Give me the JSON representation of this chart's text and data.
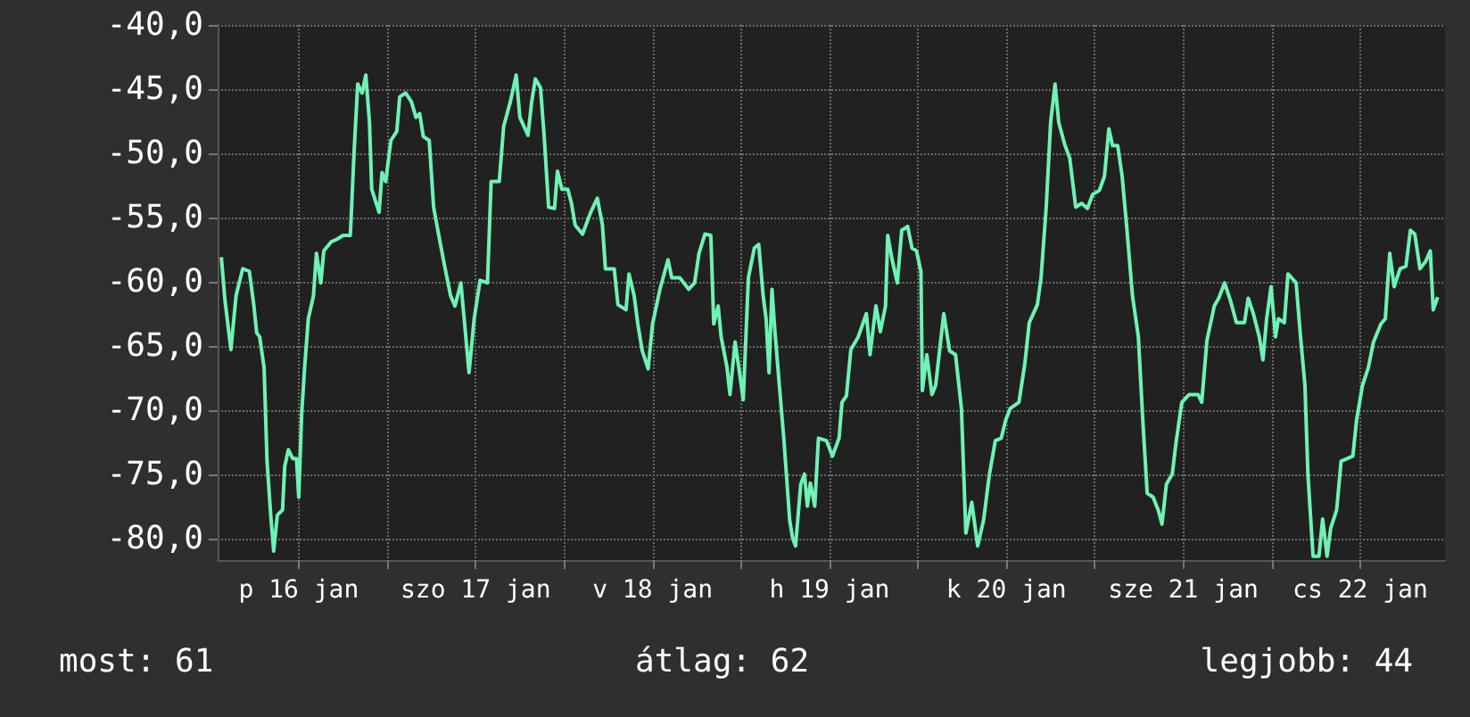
{
  "chart_data": {
    "type": "line",
    "annotations": [
      "most: 61",
      "átlag: 62",
      "legjobb: 44"
    ],
    "xlim": [
      "--01-16T01:00",
      "--01-22T23:30"
    ],
    "xticks": [
      {
        "value": "--01-16T12:00",
        "label": "p 16 jan"
      },
      {
        "value": "--01-17T00:00",
        "label": null
      },
      {
        "value": "--01-17T12:00",
        "label": "szo 17 jan"
      },
      {
        "value": "--01-18T00:00",
        "label": null
      },
      {
        "value": "--01-18T12:00",
        "label": "v 18 jan"
      },
      {
        "value": "--01-19T00:00",
        "label": null
      },
      {
        "value": "--01-19T12:00",
        "label": "h 19 jan"
      },
      {
        "value": "--01-20T00:00",
        "label": null
      },
      {
        "value": "--01-20T12:00",
        "label": "k 20 jan"
      },
      {
        "value": "--01-21T00:00",
        "label": null
      },
      {
        "value": "--01-21T12:00",
        "label": "sze 21 jan"
      },
      {
        "value": "--01-22T00:00",
        "label": null
      },
      {
        "value": "--01-22T12:00",
        "label": "cs 22 jan"
      }
    ],
    "ylim": [
      -81.7,
      -40
    ],
    "yticks": [
      {
        "value": -80,
        "label": "-80,0"
      },
      {
        "value": -75,
        "label": "-75,0"
      },
      {
        "value": -70,
        "label": "-70,0"
      },
      {
        "value": -65,
        "label": "-65,0"
      },
      {
        "value": -60,
        "label": "-60,0"
      },
      {
        "value": -55,
        "label": "-55,0"
      },
      {
        "value": -50,
        "label": "-50,0"
      },
      {
        "value": -45,
        "label": "-45,0"
      },
      {
        "value": -40,
        "label": "-40,0"
      }
    ],
    "grid": true,
    "series": [
      {
        "color": "#6ff2b4",
        "x": [
          "--01-16T01:30",
          "--01-16T02:00",
          "--01-16T02:48",
          "--01-16T03:30",
          "--01-16T04:24",
          "--01-16T05:18",
          "--01-16T05:54",
          "--01-16T06:18",
          "--01-16T06:42",
          "--01-16T07:18",
          "--01-16T07:42",
          "--01-16T08:12",
          "--01-16T08:36",
          "--01-16T09:06",
          "--01-16T09:48",
          "--01-16T10:06",
          "--01-16T10:36",
          "--01-16T11:12",
          "--01-16T11:42",
          "--01-16T12:00",
          "--01-16T12:24",
          "--01-16T12:48",
          "--01-16T13:18",
          "--01-16T14:00",
          "--01-16T14:24",
          "--01-16T15:00",
          "--01-16T15:24",
          "--01-16T16:24",
          "--01-16T17:12",
          "--01-16T18:00",
          "--01-16T19:00",
          "--01-16T19:30",
          "--01-16T20:00",
          "--01-16T20:36",
          "--01-16T21:06",
          "--01-16T21:36",
          "--01-16T21:54",
          "--01-16T22:54",
          "--01-16T23:18",
          "--01-16T23:48",
          "--01-17T00:30",
          "--01-17T01:18",
          "--01-17T01:42",
          "--01-17T02:30",
          "--01-17T03:18",
          "--01-17T03:54",
          "--01-17T04:24",
          "--01-17T04:54",
          "--01-17T05:42",
          "--01-17T06:18",
          "--01-17T07:00",
          "--01-17T07:48",
          "--01-17T08:36",
          "--01-17T09:12",
          "--01-17T10:00",
          "--01-17T10:36",
          "--01-17T11:06",
          "--01-17T11:48",
          "--01-17T12:36",
          "--01-17T13:36",
          "--01-17T14:06",
          "--01-17T15:12",
          "--01-17T15:48",
          "--01-17T16:42",
          "--01-17T17:30",
          "--01-17T18:00",
          "--01-17T19:06",
          "--01-17T19:36",
          "--01-17T20:06",
          "--01-17T20:48",
          "--01-17T21:18",
          "--01-17T21:54",
          "--01-17T22:42",
          "--01-17T23:06",
          "--01-17T23:42",
          "--01-18T00:30",
          "--01-18T01:00",
          "--01-18T01:30",
          "--01-18T02:30",
          "--01-18T03:36",
          "--01-18T04:30",
          "--01-18T05:12",
          "--01-18T05:36",
          "--01-18T06:48",
          "--01-18T07:18",
          "--01-18T08:24",
          "--01-18T08:48",
          "--01-18T09:30",
          "--01-18T10:00",
          "--01-18T10:36",
          "--01-18T11:24",
          "--01-18T12:00",
          "--01-18T13:00",
          "--01-18T14:06",
          "--01-18T14:36",
          "--01-18T15:42",
          "--01-18T16:54",
          "--01-18T17:42",
          "--01-18T18:18",
          "--01-18T19:06",
          "--01-18T19:54",
          "--01-18T20:18",
          "--01-18T20:54",
          "--01-18T21:18",
          "--01-18T22:06",
          "--01-18T22:30",
          "--01-18T23:12",
          "--01-18T23:48",
          "--01-19T00:18",
          "--01-19T01:00",
          "--01-19T01:48",
          "--01-19T02:24",
          "--01-19T03:00",
          "--01-19T03:24",
          "--01-19T03:48",
          "--01-19T04:12",
          "--01-19T04:36",
          "--01-19T05:12",
          "--01-19T05:48",
          "--01-19T06:36",
          "--01-19T07:00",
          "--01-19T07:24",
          "--01-19T08:06",
          "--01-19T08:36",
          "--01-19T09:00",
          "--01-19T09:24",
          "--01-19T10:00",
          "--01-19T10:30",
          "--01-19T11:36",
          "--01-19T12:24",
          "--01-19T13:18",
          "--01-19T13:42",
          "--01-19T14:18",
          "--01-19T14:54",
          "--01-19T15:54",
          "--01-19T17:00",
          "--01-19T17:30",
          "--01-19T18:18",
          "--01-19T18:54",
          "--01-19T19:36",
          "--01-19T19:54",
          "--01-19T20:30",
          "--01-19T21:12",
          "--01-19T21:48",
          "--01-19T22:36",
          "--01-19T23:12",
          "--01-19T23:48",
          "--01-20T00:24",
          "--01-20T00:36",
          "--01-20T01:12",
          "--01-20T01:54",
          "--01-20T02:24",
          "--01-20T03:30",
          "--01-20T04:18",
          "--01-20T05:06",
          "--01-20T05:54",
          "--01-20T06:30",
          "--01-20T07:18",
          "--01-20T08:06",
          "--01-20T08:54",
          "--01-20T09:42",
          "--01-20T10:30",
          "--01-20T11:18",
          "--01-20T11:54",
          "--01-20T12:30",
          "--01-20T13:42",
          "--01-20T14:30",
          "--01-20T15:06",
          "--01-20T16:12",
          "--01-20T16:42",
          "--01-20T17:24",
          "--01-20T18:00",
          "--01-20T18:36",
          "--01-20T19:06",
          "--01-20T19:54",
          "--01-20T20:36",
          "--01-20T21:24",
          "--01-20T22:12",
          "--01-20T23:00",
          "--01-20T23:42",
          "--01-21T00:36",
          "--01-21T01:18",
          "--01-21T01:54",
          "--01-21T02:24",
          "--01-21T03:06",
          "--01-21T03:42",
          "--01-21T04:18",
          "--01-21T05:06",
          "--01-21T05:54",
          "--01-21T06:30",
          "--01-21T07:06",
          "--01-21T07:54",
          "--01-21T08:36",
          "--01-21T09:06",
          "--01-21T09:42",
          "--01-21T10:30",
          "--01-21T11:00",
          "--01-21T11:48",
          "--01-21T12:48",
          "--01-21T14:00",
          "--01-21T14:30",
          "--01-21T15:12",
          "--01-21T16:12",
          "--01-21T16:48",
          "--01-21T17:36",
          "--01-21T18:24",
          "--01-21T19:12",
          "--01-21T20:18",
          "--01-21T20:48",
          "--01-21T21:30",
          "--01-21T22:18",
          "--01-21T22:48",
          "--01-21T23:18",
          "--01-21T23:54",
          "--01-22T00:30",
          "--01-22T00:54",
          "--01-22T01:42",
          "--01-22T02:12",
          "--01-22T03:18",
          "--01-22T03:54",
          "--01-22T04:30",
          "--01-22T04:54",
          "--01-22T05:36",
          "--01-22T06:24",
          "--01-22T06:54",
          "--01-22T07:30",
          "--01-22T08:00",
          "--01-22T08:48",
          "--01-22T09:24",
          "--01-22T10:12",
          "--01-22T11:00",
          "--01-22T11:30",
          "--01-22T12:18",
          "--01-22T13:06",
          "--01-22T13:48",
          "--01-22T14:48",
          "--01-22T15:24",
          "--01-22T16:00",
          "--01-22T16:36",
          "--01-22T17:24",
          "--01-22T18:12",
          "--01-22T18:48",
          "--01-22T19:24",
          "--01-22T20:06",
          "--01-22T20:54",
          "--01-22T21:30",
          "--01-22T21:54",
          "--01-22T22:30"
        ],
        "values": [
          -58.1,
          -61.5,
          -65.3,
          -61.1,
          -59.0,
          -59.2,
          -61.8,
          -64.0,
          -64.3,
          -66.7,
          -74.0,
          -78.2,
          -81.0,
          -78.2,
          -77.8,
          -74.4,
          -73.1,
          -73.8,
          -73.8,
          -76.8,
          -70.3,
          -66.7,
          -62.9,
          -61.1,
          -57.8,
          -60.1,
          -57.6,
          -56.9,
          -56.7,
          -56.4,
          -56.4,
          -50.0,
          -44.6,
          -45.3,
          -43.9,
          -47.6,
          -52.8,
          -54.6,
          -51.5,
          -52.2,
          -49.0,
          -48.3,
          -45.6,
          -45.3,
          -46.0,
          -47.2,
          -46.9,
          -48.7,
          -49.0,
          -54.2,
          -56.4,
          -58.8,
          -61.1,
          -61.9,
          -60.1,
          -63.9,
          -67.1,
          -62.9,
          -59.9,
          -60.1,
          -52.2,
          -52.2,
          -47.9,
          -46.0,
          -43.9,
          -47.2,
          -48.6,
          -46.0,
          -44.2,
          -44.9,
          -48.7,
          -54.2,
          -54.3,
          -51.4,
          -52.8,
          -52.8,
          -53.9,
          -55.6,
          -56.3,
          -54.6,
          -53.5,
          -55.6,
          -59.0,
          -59.0,
          -61.8,
          -62.2,
          -59.4,
          -61.1,
          -63.3,
          -65.4,
          -66.8,
          -63.3,
          -60.6,
          -58.3,
          -59.7,
          -59.7,
          -60.6,
          -60.1,
          -57.8,
          -56.3,
          -56.4,
          -63.3,
          -61.9,
          -64.3,
          -66.7,
          -68.8,
          -64.7,
          -67.1,
          -69.2,
          -59.7,
          -57.4,
          -57.1,
          -61.1,
          -62.9,
          -67.1,
          -60.6,
          -63.9,
          -68.1,
          -72.2,
          -78.6,
          -80.0,
          -80.6,
          -75.8,
          -75.0,
          -77.5,
          -75.7,
          -77.5,
          -72.2,
          -72.4,
          -73.6,
          -72.2,
          -69.4,
          -68.9,
          -65.3,
          -64.3,
          -62.5,
          -65.7,
          -61.9,
          -63.9,
          -61.9,
          -56.4,
          -58.3,
          -60.1,
          -56.0,
          -55.7,
          -57.4,
          -57.6,
          -59.2,
          -68.5,
          -65.7,
          -68.8,
          -68.1,
          -62.5,
          -65.4,
          -65.7,
          -69.9,
          -79.6,
          -77.2,
          -80.6,
          -78.6,
          -75.0,
          -72.4,
          -72.2,
          -70.8,
          -69.9,
          -69.4,
          -66.4,
          -63.2,
          -61.8,
          -59.7,
          -54.2,
          -47.6,
          -44.6,
          -47.6,
          -49.3,
          -50.4,
          -54.2,
          -53.9,
          -54.3,
          -53.2,
          -52.9,
          -51.8,
          -48.1,
          -49.4,
          -49.4,
          -51.8,
          -55.6,
          -61.1,
          -64.3,
          -70.8,
          -76.5,
          -76.8,
          -77.8,
          -78.9,
          -75.8,
          -75.0,
          -72.6,
          -69.4,
          -68.8,
          -68.8,
          -69.4,
          -64.6,
          -61.9,
          -61.3,
          -60.1,
          -61.5,
          -63.2,
          -63.2,
          -61.3,
          -62.5,
          -64.3,
          -66.1,
          -62.9,
          -60.4,
          -64.3,
          -62.9,
          -63.2,
          -59.4,
          -60.1,
          -64.3,
          -68.1,
          -75.0,
          -81.4,
          -81.4,
          -78.5,
          -81.4,
          -79.2,
          -77.8,
          -74.0,
          -73.8,
          -73.6,
          -70.8,
          -68.1,
          -66.7,
          -64.7,
          -63.3,
          -62.9,
          -57.8,
          -60.4,
          -59.0,
          -58.8,
          -56.0,
          -56.3,
          -59.0,
          -58.4,
          -57.6,
          -62.2,
          -61.2
        ]
      }
    ]
  }
}
